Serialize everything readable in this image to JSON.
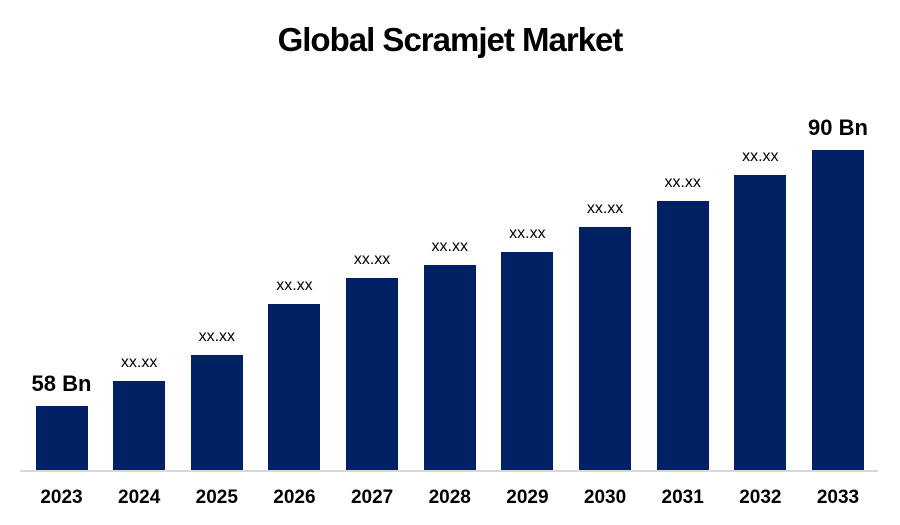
{
  "title": "Global Scramjet Market",
  "chart_data": {
    "type": "bar",
    "title": "Global Scramjet Market",
    "categories": [
      "2023",
      "2024",
      "2025",
      "2026",
      "2027",
      "2028",
      "2029",
      "2030",
      "2031",
      "2032",
      "2033"
    ],
    "values": [
      58,
      61.1,
      64.4,
      70.8,
      74.0,
      75.6,
      77.3,
      80.4,
      83.6,
      86.9,
      90
    ],
    "bar_labels": [
      "58 Bn",
      "xx.xx",
      "xx.xx",
      "xx.xx",
      "xx.xx",
      "xx.xx",
      "xx.xx",
      "xx.xx",
      "xx.xx",
      "xx.xx",
      "90 Bn"
    ],
    "unit": "Bn",
    "xlabel": "",
    "ylabel": "",
    "ylim": [
      50,
      92
    ],
    "grid": false,
    "legend": false,
    "bar_color": "#022164",
    "axis_line_color": "#d8d8d8",
    "label_color": "#000000"
  }
}
